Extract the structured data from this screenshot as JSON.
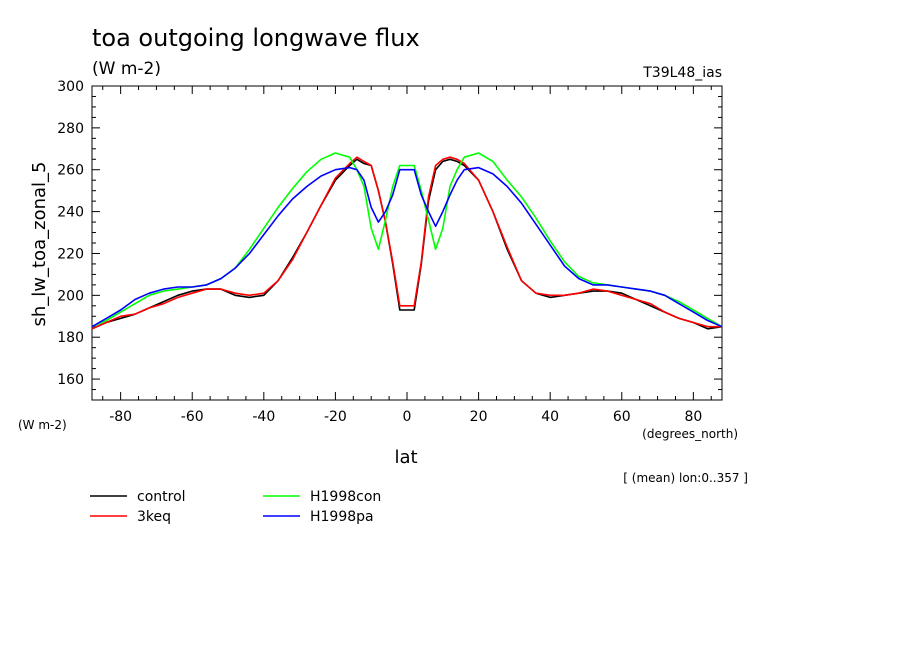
{
  "chart_data": {
    "type": "line",
    "title": "toa outgoing longwave flux",
    "units": "(W m-2)",
    "run_label": "T39L48_ias",
    "xlabel": "lat",
    "xunits": "(degrees_north)",
    "ylabel": "sh_lw_toa_zonal_5",
    "yunits": "(W m-2)",
    "averaging_note": "[ (mean) lon:0..357 ]",
    "xlim": [
      -88,
      88
    ],
    "ylim": [
      150,
      300
    ],
    "xticks": [
      "-80",
      "-60",
      "-40",
      "-20",
      "0",
      "20",
      "40",
      "60",
      "80"
    ],
    "yticks": [
      "160",
      "180",
      "200",
      "220",
      "240",
      "260",
      "280",
      "300"
    ],
    "grid": false,
    "legend_position": "bottom-left",
    "x": [
      -88,
      -84,
      -80,
      -76,
      -72,
      -68,
      -64,
      -60,
      -56,
      -52,
      -48,
      -44,
      -40,
      -36,
      -32,
      -28,
      -24,
      -20,
      -16,
      -14,
      -12,
      -10,
      -8,
      -6,
      -4,
      -2,
      0,
      2,
      4,
      6,
      8,
      10,
      12,
      14,
      16,
      20,
      24,
      28,
      32,
      36,
      40,
      44,
      48,
      52,
      56,
      60,
      64,
      68,
      72,
      76,
      80,
      84,
      88
    ],
    "series": [
      {
        "name": "control",
        "color": "#000000",
        "values": [
          184,
          187,
          189,
          191,
          194,
          197,
          200,
          202,
          203,
          203,
          200,
          199,
          200,
          207,
          218,
          230,
          243,
          255,
          262,
          265,
          263,
          262,
          250,
          235,
          215,
          193,
          193,
          193,
          215,
          245,
          260,
          264,
          265,
          264,
          262,
          255,
          240,
          222,
          207,
          201,
          199,
          200,
          201,
          202,
          202,
          201,
          198,
          195,
          192,
          189,
          187,
          184,
          185
        ]
      },
      {
        "name": "3keq",
        "color": "#ff0000",
        "values": [
          184,
          187,
          190,
          191,
          194,
          196,
          199,
          201,
          203,
          203,
          201,
          200,
          201,
          207,
          217,
          230,
          243,
          256,
          263,
          266,
          264,
          262,
          250,
          235,
          216,
          195,
          195,
          195,
          216,
          247,
          262,
          265,
          266,
          265,
          263,
          255,
          240,
          223,
          207,
          201,
          200,
          200,
          201,
          203,
          202,
          200,
          198,
          196,
          192,
          189,
          187,
          185,
          185
        ]
      },
      {
        "name": "H1998con",
        "color": "#00ff00",
        "values": [
          185,
          188,
          192,
          196,
          200,
          202,
          203,
          204,
          205,
          208,
          213,
          222,
          232,
          242,
          251,
          259,
          265,
          268,
          266,
          260,
          252,
          232,
          222,
          236,
          252,
          262,
          262,
          262,
          250,
          236,
          222,
          232,
          252,
          260,
          266,
          268,
          264,
          255,
          247,
          237,
          226,
          216,
          209,
          206,
          205,
          204,
          203,
          202,
          200,
          197,
          193,
          189,
          185
        ]
      },
      {
        "name": "H1998pa",
        "color": "#0000ff",
        "values": [
          185,
          189,
          193,
          198,
          201,
          203,
          204,
          204,
          205,
          208,
          213,
          220,
          229,
          238,
          246,
          252,
          257,
          260,
          261,
          260,
          255,
          242,
          235,
          240,
          248,
          260,
          260,
          260,
          248,
          240,
          233,
          240,
          248,
          255,
          260,
          261,
          258,
          252,
          244,
          234,
          224,
          214,
          208,
          205,
          205,
          204,
          203,
          202,
          200,
          196,
          192,
          188,
          185
        ]
      }
    ]
  }
}
